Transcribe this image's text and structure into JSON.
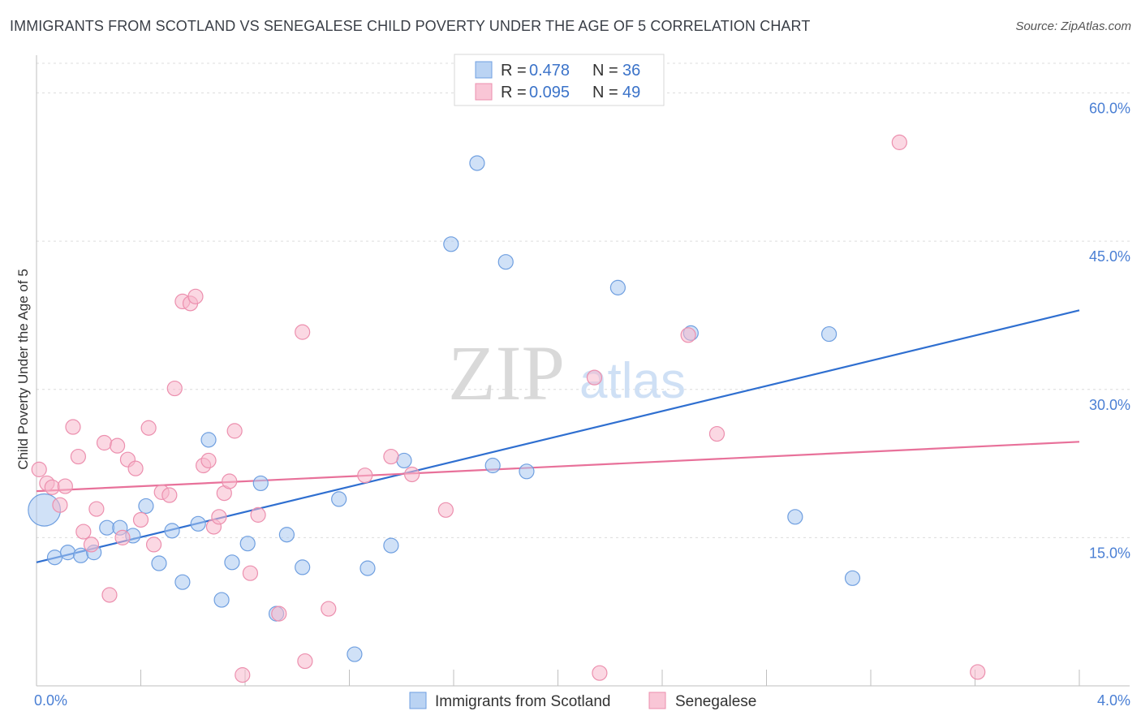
{
  "header": {
    "title": "IMMIGRANTS FROM SCOTLAND VS SENEGALESE CHILD POVERTY UNDER THE AGE OF 5 CORRELATION CHART",
    "source": "Source: ZipAtlas.com"
  },
  "watermark": {
    "zip": "ZIP",
    "atlas": "atlas"
  },
  "legend": {
    "rows": [
      {
        "r_label": "R =",
        "r_value": "0.478",
        "n_label": "N =",
        "n_value": "36",
        "color": "#a9c8f0"
      },
      {
        "r_label": "R =",
        "r_value": "0.095",
        "n_label": "N =",
        "n_value": "49",
        "color": "#f7b8cc"
      }
    ]
  },
  "bottom_legend": {
    "items": [
      {
        "label": "Immigrants from Scotland",
        "color": "#a9c8f0"
      },
      {
        "label": "Senegalese",
        "color": "#f7b8cc"
      }
    ]
  },
  "chart_data": {
    "type": "scatter",
    "title": "IMMIGRANTS FROM SCOTLAND VS SENEGALESE CHILD POVERTY UNDER THE AGE OF 5 CORRELATION CHART",
    "xlabel": "",
    "ylabel": "Child Poverty Under the Age of 5",
    "xlim": [
      0,
      4.0
    ],
    "ylim": [
      0,
      63
    ],
    "x_ticks": [
      {
        "value": 0,
        "label": "0.0%"
      },
      {
        "value": 4.0,
        "label": "4.0%"
      }
    ],
    "y_ticks": [
      {
        "value": 15,
        "label": "15.0%"
      },
      {
        "value": 30,
        "label": "30.0%"
      },
      {
        "value": 45,
        "label": "45.0%"
      },
      {
        "value": 60,
        "label": "60.0%"
      }
    ],
    "grid": true,
    "legend_position": "top-center",
    "series": [
      {
        "name": "Immigrants from Scotland",
        "color": "#6f9fe0",
        "fill": "#a9c8f0",
        "line_color": "#2f6fd0",
        "trend": {
          "x": [
            0,
            4.0
          ],
          "y": [
            12.5,
            38.0
          ]
        },
        "points": [
          {
            "x": 0.03,
            "y": 17.8,
            "size": 2.2
          },
          {
            "x": 0.07,
            "y": 13.0
          },
          {
            "x": 0.12,
            "y": 13.5
          },
          {
            "x": 0.17,
            "y": 13.2
          },
          {
            "x": 0.22,
            "y": 13.5
          },
          {
            "x": 0.27,
            "y": 16.0
          },
          {
            "x": 0.32,
            "y": 16.0
          },
          {
            "x": 0.37,
            "y": 15.2
          },
          {
            "x": 0.42,
            "y": 18.2
          },
          {
            "x": 0.47,
            "y": 12.4
          },
          {
            "x": 0.52,
            "y": 15.7
          },
          {
            "x": 0.56,
            "y": 10.5
          },
          {
            "x": 0.62,
            "y": 16.4
          },
          {
            "x": 0.66,
            "y": 24.9
          },
          {
            "x": 0.71,
            "y": 8.7
          },
          {
            "x": 0.75,
            "y": 12.5
          },
          {
            "x": 0.81,
            "y": 14.4
          },
          {
            "x": 0.86,
            "y": 20.5
          },
          {
            "x": 0.92,
            "y": 7.3
          },
          {
            "x": 0.96,
            "y": 15.3
          },
          {
            "x": 1.02,
            "y": 12.0
          },
          {
            "x": 1.16,
            "y": 18.9
          },
          {
            "x": 1.22,
            "y": 3.2
          },
          {
            "x": 1.27,
            "y": 11.9
          },
          {
            "x": 1.36,
            "y": 14.2
          },
          {
            "x": 1.41,
            "y": 22.8
          },
          {
            "x": 1.59,
            "y": 44.7
          },
          {
            "x": 1.69,
            "y": 52.9
          },
          {
            "x": 1.75,
            "y": 22.3
          },
          {
            "x": 1.8,
            "y": 42.9
          },
          {
            "x": 1.88,
            "y": 21.7
          },
          {
            "x": 2.23,
            "y": 40.3
          },
          {
            "x": 2.51,
            "y": 35.7
          },
          {
            "x": 2.91,
            "y": 17.1
          },
          {
            "x": 3.04,
            "y": 35.6
          },
          {
            "x": 3.13,
            "y": 10.9
          }
        ]
      },
      {
        "name": "Senegalese",
        "color": "#ec8fae",
        "fill": "#f7b8cc",
        "line_color": "#e8719a",
        "trend": {
          "x": [
            0,
            4.0
          ],
          "y": [
            19.7,
            24.7
          ]
        },
        "points": [
          {
            "x": 0.01,
            "y": 21.9
          },
          {
            "x": 0.04,
            "y": 20.5
          },
          {
            "x": 0.06,
            "y": 20.1
          },
          {
            "x": 0.09,
            "y": 18.3
          },
          {
            "x": 0.11,
            "y": 20.2
          },
          {
            "x": 0.14,
            "y": 26.2
          },
          {
            "x": 0.16,
            "y": 23.2
          },
          {
            "x": 0.18,
            "y": 15.6
          },
          {
            "x": 0.21,
            "y": 14.3
          },
          {
            "x": 0.23,
            "y": 17.9
          },
          {
            "x": 0.26,
            "y": 24.6
          },
          {
            "x": 0.28,
            "y": 9.2
          },
          {
            "x": 0.31,
            "y": 24.3
          },
          {
            "x": 0.33,
            "y": 15.0
          },
          {
            "x": 0.35,
            "y": 22.9
          },
          {
            "x": 0.38,
            "y": 22.0
          },
          {
            "x": 0.4,
            "y": 16.8
          },
          {
            "x": 0.43,
            "y": 26.1
          },
          {
            "x": 0.45,
            "y": 14.3
          },
          {
            "x": 0.48,
            "y": 19.6
          },
          {
            "x": 0.51,
            "y": 19.3
          },
          {
            "x": 0.53,
            "y": 30.1
          },
          {
            "x": 0.56,
            "y": 38.9
          },
          {
            "x": 0.59,
            "y": 38.7
          },
          {
            "x": 0.61,
            "y": 39.4
          },
          {
            "x": 0.64,
            "y": 22.3
          },
          {
            "x": 0.66,
            "y": 22.8
          },
          {
            "x": 0.68,
            "y": 16.1
          },
          {
            "x": 0.7,
            "y": 17.1
          },
          {
            "x": 0.72,
            "y": 19.5
          },
          {
            "x": 0.74,
            "y": 20.7
          },
          {
            "x": 0.76,
            "y": 25.8
          },
          {
            "x": 0.79,
            "y": 1.1
          },
          {
            "x": 0.82,
            "y": 11.4
          },
          {
            "x": 0.85,
            "y": 17.3
          },
          {
            "x": 0.93,
            "y": 7.3
          },
          {
            "x": 1.02,
            "y": 35.8
          },
          {
            "x": 1.03,
            "y": 2.5
          },
          {
            "x": 1.12,
            "y": 7.8
          },
          {
            "x": 1.26,
            "y": 21.3
          },
          {
            "x": 1.36,
            "y": 23.2
          },
          {
            "x": 1.44,
            "y": 21.4
          },
          {
            "x": 1.57,
            "y": 17.8
          },
          {
            "x": 2.14,
            "y": 31.2
          },
          {
            "x": 2.16,
            "y": 1.3
          },
          {
            "x": 2.5,
            "y": 35.5
          },
          {
            "x": 2.61,
            "y": 25.5
          },
          {
            "x": 3.31,
            "y": 55.0
          },
          {
            "x": 3.61,
            "y": 1.4
          }
        ]
      }
    ]
  }
}
